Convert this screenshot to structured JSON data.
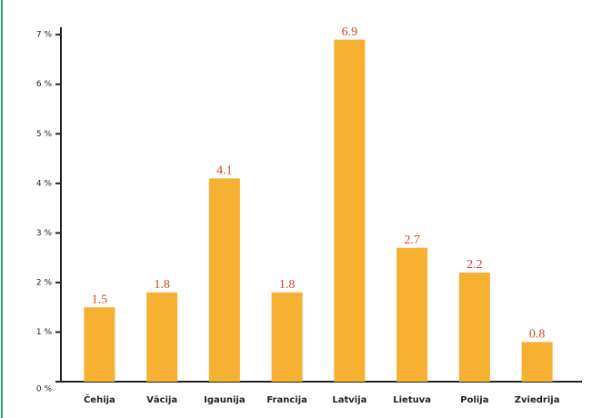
{
  "chart_data": {
    "type": "bar",
    "categories": [
      "Čehija",
      "Vācija",
      "Igaunija",
      "Francija",
      "Latvija",
      "Lietuva",
      "Polija",
      "Zviedrija"
    ],
    "values": [
      1.5,
      1.8,
      4.1,
      1.8,
      6.9,
      2.7,
      2.2,
      0.8
    ],
    "color": "#f6b032",
    "value_label_color": "#e0402a",
    "ylim": [
      0,
      7.15
    ],
    "yticks": [
      {
        "value": 0,
        "label": "0 %"
      },
      {
        "value": 1,
        "label": "1 %"
      },
      {
        "value": 2,
        "label": "2 %"
      },
      {
        "value": 3,
        "label": "3 %"
      },
      {
        "value": 4,
        "label": "4 %"
      },
      {
        "value": 5,
        "label": "5 %"
      },
      {
        "value": 6,
        "label": "6 %"
      },
      {
        "value": 7,
        "label": "7 %"
      }
    ],
    "grid": false
  }
}
